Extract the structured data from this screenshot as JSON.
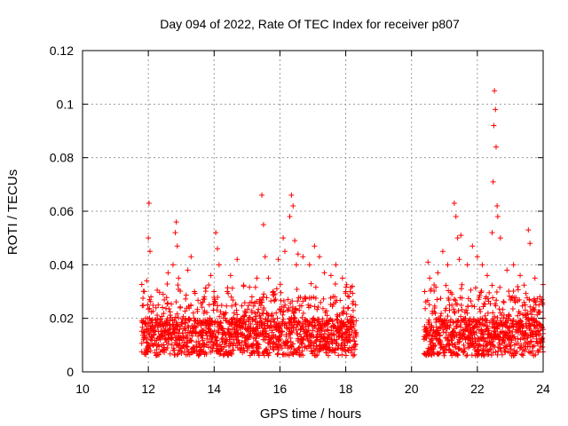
{
  "chart_data": {
    "type": "scatter",
    "title": "Day 094 of 2022, Rate Of TEC Index for receiver p807",
    "xlabel": "GPS time / hours",
    "ylabel": "ROTI / TECUs",
    "xlim": [
      10,
      24
    ],
    "ylim": [
      0,
      0.12
    ],
    "xticks": [
      10,
      12,
      14,
      16,
      18,
      20,
      22,
      24
    ],
    "yticks": [
      0,
      0.02,
      0.04,
      0.06,
      0.08,
      0.1,
      0.12
    ],
    "grid": true,
    "marker": "+",
    "color": "#ff0000",
    "series": [
      {
        "name": "p807",
        "points": [
          [
            11.85,
            0.012
          ],
          [
            11.88,
            0.03
          ],
          [
            11.92,
            0.02
          ],
          [
            11.95,
            0.034
          ],
          [
            11.98,
            0.025
          ],
          [
            12.0,
            0.05
          ],
          [
            12.02,
            0.063
          ],
          [
            12.05,
            0.045
          ],
          [
            12.08,
            0.028
          ],
          [
            12.3,
            0.025
          ],
          [
            12.45,
            0.029
          ],
          [
            12.6,
            0.037
          ],
          [
            12.75,
            0.04
          ],
          [
            12.82,
            0.052
          ],
          [
            12.85,
            0.056
          ],
          [
            12.88,
            0.047
          ],
          [
            12.92,
            0.035
          ],
          [
            13.2,
            0.038
          ],
          [
            13.3,
            0.043
          ],
          [
            13.4,
            0.03
          ],
          [
            13.7,
            0.028
          ],
          [
            13.9,
            0.036
          ],
          [
            14.05,
            0.052
          ],
          [
            14.1,
            0.046
          ],
          [
            14.15,
            0.04
          ],
          [
            14.4,
            0.03
          ],
          [
            14.5,
            0.036
          ],
          [
            14.7,
            0.042
          ],
          [
            14.9,
            0.032
          ],
          [
            15.15,
            0.028
          ],
          [
            15.3,
            0.035
          ],
          [
            15.45,
            0.066
          ],
          [
            15.5,
            0.055
          ],
          [
            15.55,
            0.043
          ],
          [
            15.65,
            0.035
          ],
          [
            15.8,
            0.03
          ],
          [
            15.95,
            0.042
          ],
          [
            16.1,
            0.05
          ],
          [
            16.15,
            0.045
          ],
          [
            16.3,
            0.058
          ],
          [
            16.35,
            0.066
          ],
          [
            16.4,
            0.062
          ],
          [
            16.45,
            0.049
          ],
          [
            16.5,
            0.04
          ],
          [
            16.55,
            0.044
          ],
          [
            16.7,
            0.043
          ],
          [
            16.9,
            0.04
          ],
          [
            17.05,
            0.047
          ],
          [
            17.2,
            0.043
          ],
          [
            17.35,
            0.037
          ],
          [
            17.55,
            0.036
          ],
          [
            17.7,
            0.04
          ],
          [
            17.9,
            0.035
          ],
          [
            18.0,
            0.03
          ],
          [
            18.1,
            0.028
          ],
          [
            18.2,
            0.032
          ],
          [
            18.3,
            0.025
          ],
          [
            20.4,
            0.03
          ],
          [
            20.5,
            0.041
          ],
          [
            20.55,
            0.035
          ],
          [
            20.8,
            0.037
          ],
          [
            20.95,
            0.045
          ],
          [
            21.1,
            0.04
          ],
          [
            21.3,
            0.063
          ],
          [
            21.35,
            0.058
          ],
          [
            21.4,
            0.05
          ],
          [
            21.45,
            0.042
          ],
          [
            21.5,
            0.051
          ],
          [
            21.7,
            0.04
          ],
          [
            21.85,
            0.047
          ],
          [
            22.0,
            0.043
          ],
          [
            22.15,
            0.04
          ],
          [
            22.3,
            0.036
          ],
          [
            22.45,
            0.052
          ],
          [
            22.48,
            0.071
          ],
          [
            22.5,
            0.092
          ],
          [
            22.52,
            0.105
          ],
          [
            22.55,
            0.098
          ],
          [
            22.57,
            0.084
          ],
          [
            22.6,
            0.062
          ],
          [
            22.62,
            0.058
          ],
          [
            22.7,
            0.05
          ],
          [
            22.9,
            0.038
          ],
          [
            23.1,
            0.04
          ],
          [
            23.3,
            0.036
          ],
          [
            23.55,
            0.053
          ],
          [
            23.6,
            0.048
          ],
          [
            23.75,
            0.035
          ],
          [
            23.9,
            0.028
          ]
        ]
      }
    ]
  }
}
